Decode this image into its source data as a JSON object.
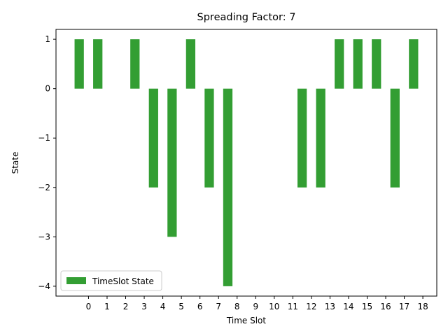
{
  "chart_data": {
    "type": "bar",
    "title": "Spreading Factor: 7",
    "xlabel": "Time Slot",
    "ylabel": "State",
    "x_ticks": [
      "0",
      "1",
      "2",
      "3",
      "4",
      "5",
      "6",
      "7",
      "8",
      "9",
      "10",
      "11",
      "12",
      "13",
      "14",
      "15",
      "16",
      "17",
      "18"
    ],
    "y_ticks": [
      "1",
      "0",
      "−1",
      "−2",
      "−3",
      "−4"
    ],
    "ylim": [
      -4.2,
      1.2
    ],
    "xlim": [
      -1.75,
      18.75
    ],
    "bar_offset": -0.5,
    "bar_width": 0.5,
    "grid": false,
    "legend_position": "lower left",
    "series": [
      {
        "name": "TimeSlot State",
        "color": "#339e33",
        "x": [
          0,
          1,
          2,
          3,
          4,
          5,
          6,
          7,
          8,
          9,
          10,
          11,
          12,
          13,
          14,
          15,
          16,
          17,
          18
        ],
        "values": [
          1,
          1,
          0,
          1,
          -2,
          -3,
          1,
          -2,
          -4,
          0,
          0,
          0,
          -2,
          -2,
          1,
          1,
          1,
          -2,
          1
        ]
      }
    ]
  }
}
